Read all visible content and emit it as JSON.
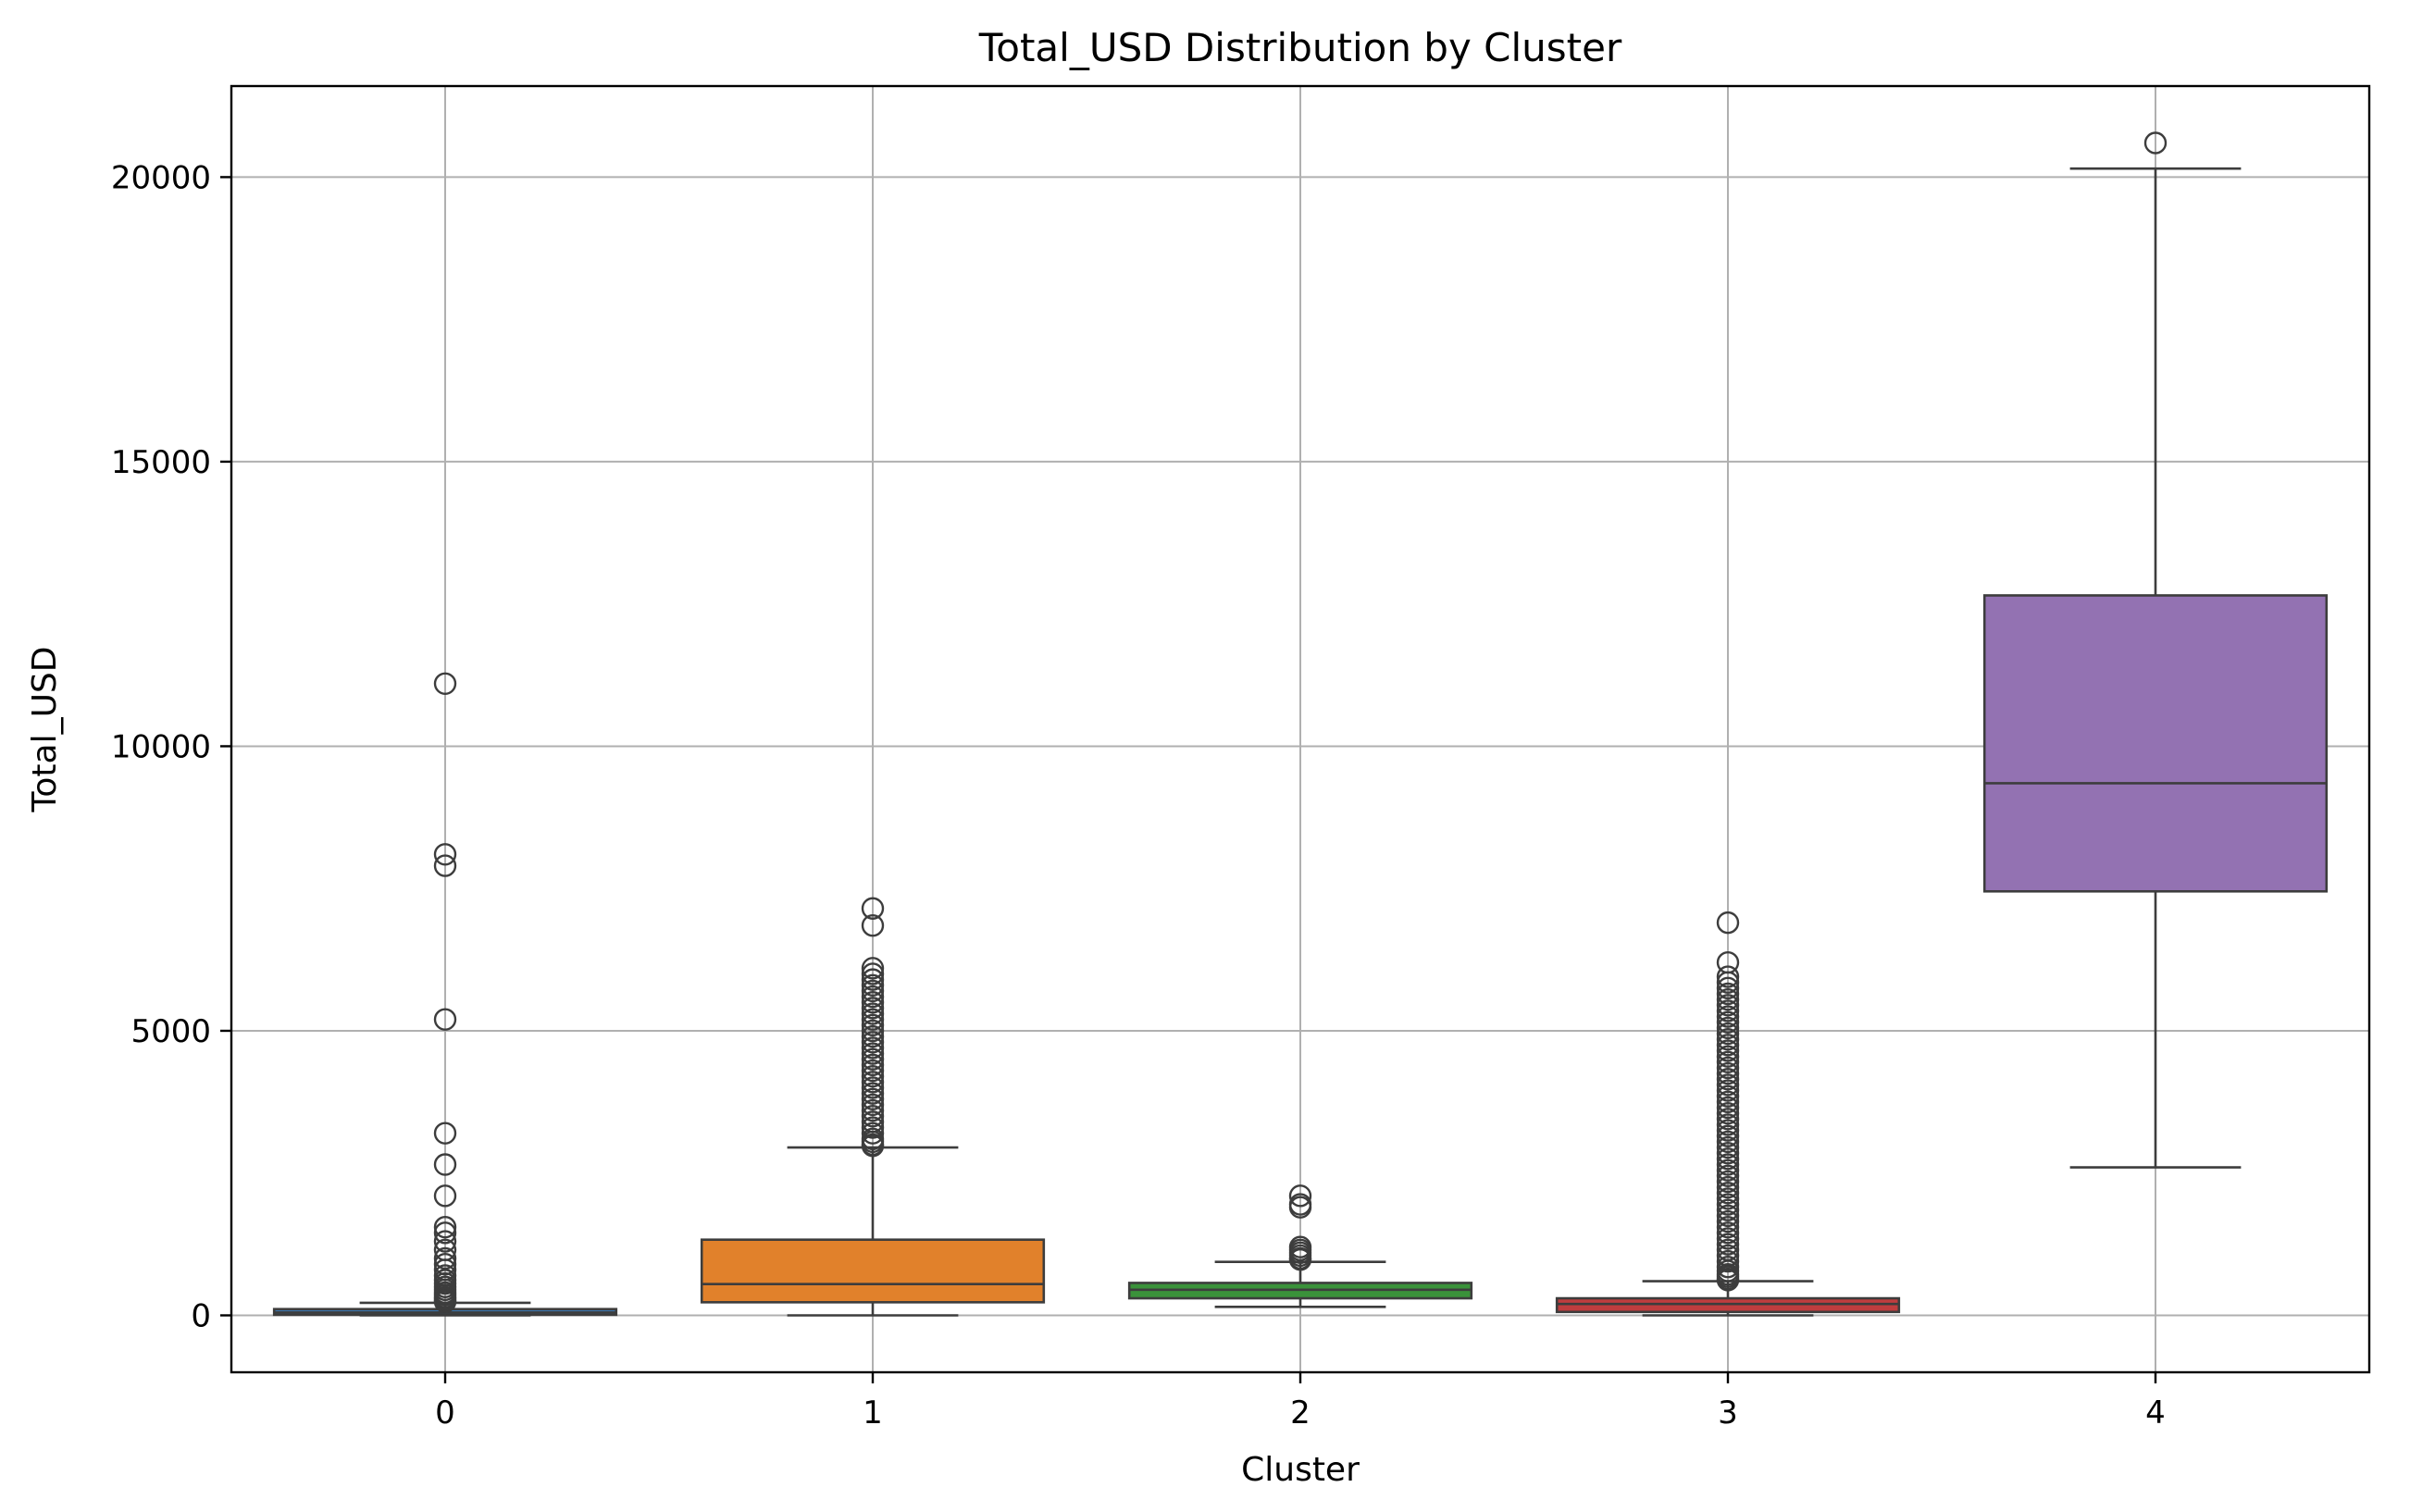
{
  "chart_data": {
    "type": "box",
    "title": "Total_USD Distribution by Cluster",
    "xlabel": "Cluster",
    "ylabel": "Total_USD",
    "ylim": [
      -1000,
      21600
    ],
    "yticks": [
      0,
      5000,
      10000,
      15000,
      20000
    ],
    "grid": true,
    "categories": [
      "0",
      "1",
      "2",
      "3",
      "4"
    ],
    "series": [
      {
        "category": "0",
        "color": "#3a76af",
        "whisker_low": 0,
        "q1": 10,
        "median": 50,
        "q3": 110,
        "whisker_high": 220,
        "outliers": [
          11100,
          8100,
          7900,
          5200,
          3200,
          2650,
          2100,
          1550,
          1450,
          1300,
          1150,
          1000,
          900,
          800,
          700,
          620,
          560,
          500,
          450,
          400,
          360,
          320,
          290,
          260,
          240
        ]
      },
      {
        "category": "1",
        "color": "#e1812b",
        "whisker_low": 0,
        "q1": 230,
        "median": 550,
        "q3": 1330,
        "whisker_high": 2950,
        "outliers": [
          7150,
          6850,
          6100,
          6000,
          5900,
          5800,
          5700,
          5600,
          5500,
          5400,
          5300,
          5200,
          5100,
          5000,
          4900,
          4800,
          4700,
          4600,
          4500,
          4400,
          4300,
          4200,
          4100,
          4000,
          3900,
          3800,
          3700,
          3600,
          3500,
          3400,
          3300,
          3200,
          3100,
          3050,
          3000,
          2980
        ]
      },
      {
        "category": "2",
        "color": "#3a923a",
        "whisker_low": 150,
        "q1": 300,
        "median": 450,
        "q3": 570,
        "whisker_high": 940,
        "outliers": [
          2100,
          1950,
          1900,
          1200,
          1150,
          1100,
          1050,
          1000,
          980
        ]
      },
      {
        "category": "3",
        "color": "#c03d3e",
        "whisker_low": 0,
        "q1": 60,
        "median": 200,
        "q3": 300,
        "whisker_high": 600,
        "outliers": [
          6900,
          6200,
          5950,
          5850,
          5750,
          5650,
          5550,
          5450,
          5350,
          5250,
          5150,
          5050,
          4950,
          4850,
          4750,
          4650,
          4550,
          4450,
          4350,
          4250,
          4150,
          4050,
          3950,
          3850,
          3750,
          3650,
          3550,
          3450,
          3350,
          3250,
          3150,
          3050,
          2950,
          2850,
          2750,
          2650,
          2550,
          2450,
          2350,
          2250,
          2150,
          2050,
          1950,
          1850,
          1750,
          1650,
          1550,
          1450,
          1350,
          1250,
          1150,
          1050,
          950,
          850,
          780,
          720,
          680,
          640,
          620
        ]
      },
      {
        "category": "4",
        "color": "#9372b2",
        "whisker_low": 2600,
        "q1": 7450,
        "median": 9350,
        "q3": 12650,
        "whisker_high": 20150,
        "outliers": [
          20600
        ]
      }
    ]
  }
}
